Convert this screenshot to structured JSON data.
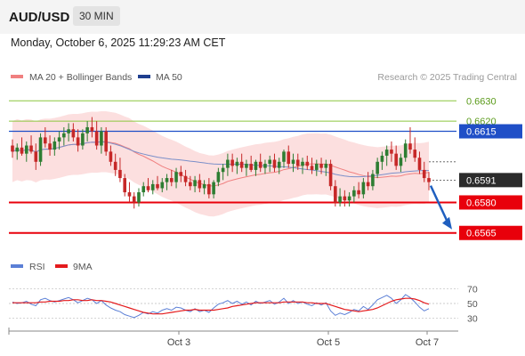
{
  "header": {
    "symbol": "AUD/USD",
    "timeframe": "30 MIN",
    "datetime": "Monday, October 6, 2025 11:29:23 AM CET"
  },
  "legend": {
    "ma20_label": "MA 20 + Bollinger Bands",
    "ma50_label": "MA 50",
    "copyright": "Research © 2025 Trading Central",
    "rsi_label": "RSI",
    "rsi_ma_label": "9MA"
  },
  "colors": {
    "bull": "#2e7d32",
    "bear": "#c62828",
    "band_fill": "#fbd4d4",
    "ma20": "#f08080",
    "ma50": "#7b8fc9",
    "support": "#e8000b",
    "resistance_blue": "#1f4fc7",
    "target_green": "#8cc63f",
    "rsi": "#5b7fd6",
    "rsi_ma": "#e41a1c",
    "arrow": "#1f5fbf"
  },
  "chart_data": {
    "type": "candlestick",
    "y_range": [
      0.6557,
      0.6638
    ],
    "levels": [
      {
        "value": 0.663,
        "label": "0.6630",
        "style": "green-line"
      },
      {
        "value": 0.662,
        "label": "0.6620",
        "style": "green-line"
      },
      {
        "value": 0.6615,
        "label": "0.6615",
        "style": "blue-box"
      },
      {
        "value": 0.6591,
        "label": "0.6591",
        "style": "black-box"
      },
      {
        "value": 0.658,
        "label": "0.6580",
        "style": "red-box"
      },
      {
        "value": 0.6565,
        "label": "0.6565",
        "style": "red-box"
      }
    ],
    "x_labels": [
      "Oct 3",
      "Oct 5",
      "Oct 7"
    ],
    "candles": [
      [
        0.6608,
        0.6611,
        0.6602,
        0.6605
      ],
      [
        0.6605,
        0.6609,
        0.6601,
        0.6607
      ],
      [
        0.6607,
        0.6612,
        0.6603,
        0.6604
      ],
      [
        0.6604,
        0.661,
        0.66,
        0.6608
      ],
      [
        0.6608,
        0.6613,
        0.6604,
        0.6605
      ],
      [
        0.6605,
        0.6609,
        0.6596,
        0.66
      ],
      [
        0.66,
        0.6614,
        0.6598,
        0.6612
      ],
      [
        0.6612,
        0.6617,
        0.6607,
        0.6609
      ],
      [
        0.6609,
        0.6613,
        0.6603,
        0.6606
      ],
      [
        0.6606,
        0.6612,
        0.6603,
        0.661
      ],
      [
        0.661,
        0.6615,
        0.6606,
        0.6612
      ],
      [
        0.6612,
        0.6617,
        0.6608,
        0.6614
      ],
      [
        0.6614,
        0.6619,
        0.661,
        0.6616
      ],
      [
        0.6616,
        0.6619,
        0.661,
        0.6612
      ],
      [
        0.6612,
        0.6616,
        0.6605,
        0.6608
      ],
      [
        0.6608,
        0.6616,
        0.6606,
        0.6614
      ],
      [
        0.6614,
        0.662,
        0.661,
        0.6617
      ],
      [
        0.6617,
        0.6622,
        0.6612,
        0.6615
      ],
      [
        0.6615,
        0.662,
        0.6606,
        0.6608
      ],
      [
        0.6608,
        0.6617,
        0.6604,
        0.6615
      ],
      [
        0.6615,
        0.6617,
        0.6603,
        0.6605
      ],
      [
        0.6605,
        0.6608,
        0.6598,
        0.66
      ],
      [
        0.66,
        0.6604,
        0.6593,
        0.6596
      ],
      [
        0.6596,
        0.6602,
        0.659,
        0.6592
      ],
      [
        0.6592,
        0.6594,
        0.6583,
        0.6585
      ],
      [
        0.6585,
        0.659,
        0.658,
        0.6583
      ],
      [
        0.6583,
        0.6585,
        0.6577,
        0.658
      ],
      [
        0.658,
        0.6587,
        0.6578,
        0.6585
      ],
      [
        0.6585,
        0.659,
        0.6583,
        0.6588
      ],
      [
        0.6588,
        0.6592,
        0.6585,
        0.6586
      ],
      [
        0.6586,
        0.6591,
        0.6584,
        0.6589
      ],
      [
        0.6589,
        0.6593,
        0.6586,
        0.6587
      ],
      [
        0.6587,
        0.6592,
        0.6585,
        0.659
      ],
      [
        0.659,
        0.6594,
        0.6586,
        0.6592
      ],
      [
        0.6592,
        0.6596,
        0.6588,
        0.659
      ],
      [
        0.659,
        0.6597,
        0.6587,
        0.6595
      ],
      [
        0.6595,
        0.6598,
        0.659,
        0.6593
      ],
      [
        0.6593,
        0.6596,
        0.6588,
        0.659
      ],
      [
        0.659,
        0.6593,
        0.6586,
        0.6588
      ],
      [
        0.6588,
        0.6593,
        0.6585,
        0.6591
      ],
      [
        0.6591,
        0.6594,
        0.6585,
        0.6587
      ],
      [
        0.6587,
        0.6591,
        0.6584,
        0.6589
      ],
      [
        0.6589,
        0.6592,
        0.6582,
        0.6584
      ],
      [
        0.6584,
        0.6591,
        0.6582,
        0.659
      ],
      [
        0.659,
        0.6597,
        0.6588,
        0.6595
      ],
      [
        0.6595,
        0.6599,
        0.6591,
        0.6597
      ],
      [
        0.6597,
        0.6604,
        0.6593,
        0.6601
      ],
      [
        0.6601,
        0.6604,
        0.6595,
        0.6598
      ],
      [
        0.6598,
        0.6602,
        0.6594,
        0.66
      ],
      [
        0.66,
        0.6604,
        0.6595,
        0.6597
      ],
      [
        0.6597,
        0.6601,
        0.6593,
        0.6599
      ],
      [
        0.6599,
        0.6603,
        0.6595,
        0.6596
      ],
      [
        0.6596,
        0.6601,
        0.6593,
        0.66
      ],
      [
        0.66,
        0.6604,
        0.6595,
        0.6597
      ],
      [
        0.6597,
        0.6601,
        0.6594,
        0.6599
      ],
      [
        0.6599,
        0.6603,
        0.6595,
        0.6601
      ],
      [
        0.6601,
        0.6604,
        0.6595,
        0.6597
      ],
      [
        0.6597,
        0.6602,
        0.6594,
        0.66
      ],
      [
        0.66,
        0.6606,
        0.6597,
        0.6605
      ],
      [
        0.6605,
        0.6608,
        0.6597,
        0.6599
      ],
      [
        0.6599,
        0.6604,
        0.6595,
        0.6601
      ],
      [
        0.6601,
        0.6604,
        0.6596,
        0.6598
      ],
      [
        0.6598,
        0.6602,
        0.6594,
        0.66
      ],
      [
        0.66,
        0.6603,
        0.6596,
        0.6598
      ],
      [
        0.6598,
        0.6602,
        0.6594,
        0.6596
      ],
      [
        0.6596,
        0.6601,
        0.6593,
        0.6599
      ],
      [
        0.6599,
        0.6602,
        0.6594,
        0.6597
      ],
      [
        0.6597,
        0.6601,
        0.6593,
        0.6599
      ],
      [
        0.6599,
        0.6601,
        0.6586,
        0.6588
      ],
      [
        0.6588,
        0.6591,
        0.6578,
        0.658
      ],
      [
        0.658,
        0.6587,
        0.6578,
        0.6583
      ],
      [
        0.6583,
        0.6586,
        0.6578,
        0.6581
      ],
      [
        0.6581,
        0.6585,
        0.6578,
        0.6583
      ],
      [
        0.6583,
        0.6588,
        0.658,
        0.6586
      ],
      [
        0.6586,
        0.659,
        0.6582,
        0.6584
      ],
      [
        0.6584,
        0.6592,
        0.6582,
        0.659
      ],
      [
        0.659,
        0.6595,
        0.6586,
        0.6588
      ],
      [
        0.6588,
        0.6596,
        0.6586,
        0.6594
      ],
      [
        0.6594,
        0.6602,
        0.6592,
        0.66
      ],
      [
        0.66,
        0.6605,
        0.6596,
        0.6603
      ],
      [
        0.6603,
        0.6608,
        0.6598,
        0.6606
      ],
      [
        0.6606,
        0.661,
        0.66,
        0.6604
      ],
      [
        0.6604,
        0.6608,
        0.6596,
        0.6598
      ],
      [
        0.6598,
        0.6604,
        0.6595,
        0.6602
      ],
      [
        0.6602,
        0.6611,
        0.66,
        0.6609
      ],
      [
        0.6609,
        0.6617,
        0.6604,
        0.6606
      ],
      [
        0.6606,
        0.6612,
        0.66,
        0.6602
      ],
      [
        0.6602,
        0.6605,
        0.6594,
        0.6596
      ],
      [
        0.6596,
        0.66,
        0.659,
        0.6592
      ],
      [
        0.6592,
        0.6595,
        0.6586,
        0.659
      ]
    ],
    "rsi": [
      52,
      50,
      51,
      53,
      49,
      47,
      55,
      57,
      54,
      52,
      54,
      56,
      58,
      55,
      51,
      54,
      57,
      55,
      50,
      54,
      48,
      44,
      41,
      39,
      35,
      33,
      31,
      34,
      38,
      36,
      39,
      37,
      41,
      43,
      41,
      45,
      44,
      41,
      39,
      43,
      39,
      41,
      38,
      44,
      49,
      51,
      54,
      50,
      53,
      49,
      52,
      48,
      53,
      50,
      52,
      54,
      49,
      52,
      57,
      50,
      54,
      50,
      52,
      49,
      47,
      51,
      48,
      51,
      40,
      34,
      37,
      35,
      38,
      42,
      40,
      46,
      42,
      48,
      55,
      58,
      61,
      57,
      50,
      55,
      62,
      58,
      52,
      45,
      40,
      43
    ],
    "rsi_ma": [
      51,
      51,
      51,
      51,
      51,
      51,
      52,
      52,
      53,
      53,
      53,
      54,
      54,
      55,
      55,
      54,
      54,
      55,
      54,
      54,
      53,
      52,
      50,
      48,
      46,
      44,
      42,
      40,
      38,
      37,
      36,
      36,
      36,
      37,
      38,
      39,
      40,
      41,
      41,
      42,
      41,
      41,
      41,
      41,
      42,
      43,
      44,
      46,
      47,
      48,
      49,
      50,
      51,
      51,
      51,
      51,
      51,
      51,
      52,
      52,
      52,
      52,
      52,
      51,
      51,
      50,
      50,
      50,
      48,
      46,
      44,
      42,
      41,
      40,
      39,
      40,
      41,
      42,
      44,
      47,
      50,
      53,
      55,
      56,
      57,
      57,
      56,
      54,
      51,
      49
    ],
    "rsi_scale": [
      20,
      80
    ],
    "rsi_ticks": [
      70,
      50,
      30
    ]
  }
}
